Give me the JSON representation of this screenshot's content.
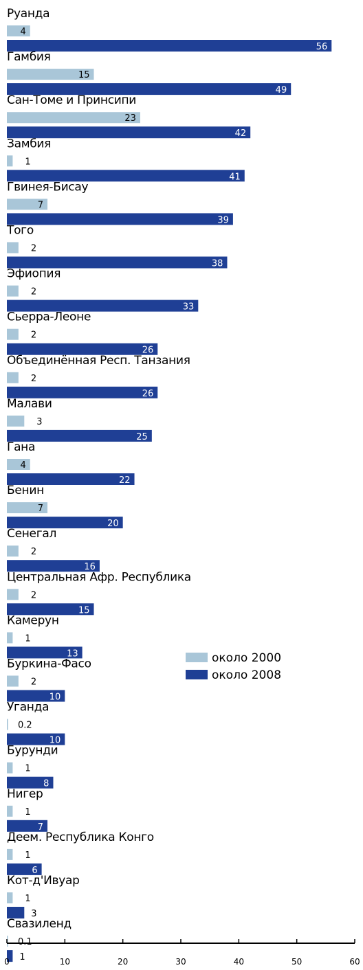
{
  "chart_data": {
    "type": "bar",
    "orientation": "horizontal",
    "categories": [
      "Руанда",
      "Гамбия",
      "Сан-Томе и Принсипи",
      "Замбия",
      "Гвинея-Бисау",
      "Того",
      "Эфиопия",
      "Сьерра-Леоне",
      "Объединённая Респ. Танзания",
      "Малави",
      "Гана",
      "Бенин",
      "Сенегал",
      "Центральная Афр. Республика",
      "Камерун",
      "Буркина-Фасо",
      "Уганда",
      "Бурунди",
      "Нигер",
      "Деем. Республика Конго",
      "Кот-д'Ивуар",
      "Свазиленд"
    ],
    "series": [
      {
        "name": "около 2000",
        "color": "#a9c6d8",
        "values": [
          4,
          15,
          23,
          1,
          7,
          2,
          2,
          2,
          2,
          3,
          4,
          7,
          2,
          2,
          1,
          2,
          0.2,
          1,
          1,
          1,
          1,
          0.1
        ],
        "value_labels": [
          "4",
          "15",
          "23",
          "1",
          "7",
          "2",
          "2",
          "2",
          "2",
          "3",
          "4",
          "7",
          "2",
          "2",
          "1",
          "2",
          "0.2",
          "1",
          "1",
          "1",
          "1",
          "0.1"
        ]
      },
      {
        "name": "около 2008",
        "color": "#1f3f95",
        "values": [
          56,
          49,
          42,
          41,
          39,
          38,
          33,
          26,
          26,
          25,
          22,
          20,
          16,
          15,
          13,
          10,
          10,
          8,
          7,
          6,
          3,
          1
        ],
        "value_labels": [
          "56",
          "49",
          "42",
          "41",
          "39",
          "38",
          "33",
          "26",
          "26",
          "25",
          "22",
          "20",
          "16",
          "15",
          "13",
          "10",
          "10",
          "8",
          "7",
          "6",
          "3",
          "1"
        ]
      }
    ],
    "xlim": [
      0,
      60
    ],
    "xticks": [
      "0",
      "10",
      "20",
      "30",
      "40",
      "50",
      "60"
    ],
    "xlabel": "",
    "title": "",
    "legend_position": "middle-right",
    "grid": false
  }
}
